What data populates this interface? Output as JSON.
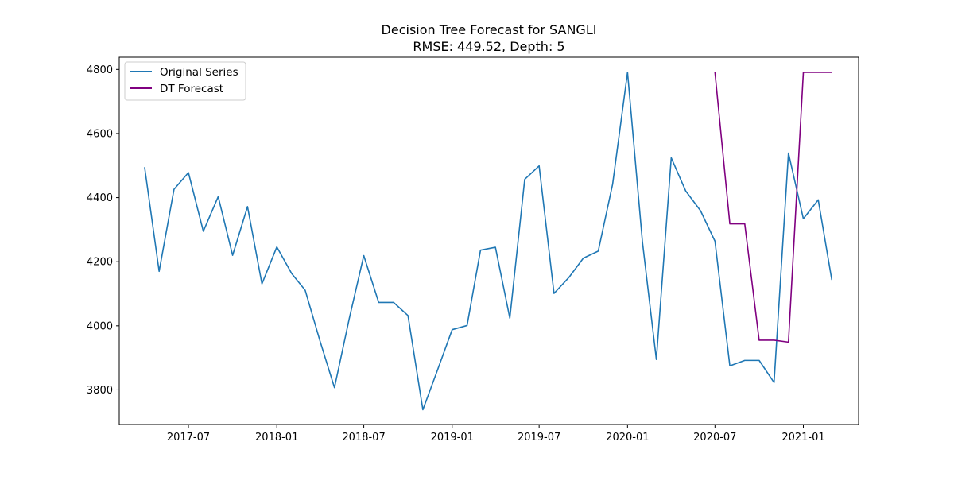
{
  "chart_data": {
    "type": "line",
    "title": "Decision Tree Forecast for SANGLI",
    "subtitle": "RMSE: 449.52, Depth: 5",
    "xlabel": "",
    "ylabel": "",
    "x_axis_type": "date",
    "xlim": [
      "2017-02-07",
      "2021-04-26"
    ],
    "ylim": [
      3692,
      4838
    ],
    "grid": false,
    "legend_position": "top-left",
    "x_ticks": [
      {
        "date": "2017-07-01",
        "label": "2017-07"
      },
      {
        "date": "2018-01-01",
        "label": "2018-01"
      },
      {
        "date": "2018-07-01",
        "label": "2018-07"
      },
      {
        "date": "2019-01-01",
        "label": "2019-01"
      },
      {
        "date": "2019-07-01",
        "label": "2019-07"
      },
      {
        "date": "2020-01-01",
        "label": "2020-01"
      },
      {
        "date": "2020-07-01",
        "label": "2020-07"
      },
      {
        "date": "2021-01-01",
        "label": "2021-01"
      }
    ],
    "y_ticks": [
      {
        "value": 3800,
        "label": "3800"
      },
      {
        "value": 4000,
        "label": "4000"
      },
      {
        "value": 4200,
        "label": "4200"
      },
      {
        "value": 4400,
        "label": "4400"
      },
      {
        "value": 4600,
        "label": "4600"
      },
      {
        "value": 4800,
        "label": "4800"
      }
    ],
    "series": [
      {
        "name": "Original Series",
        "color": "#1f77b4",
        "x": [
          "2017-04-01",
          "2017-05-01",
          "2017-06-01",
          "2017-07-01",
          "2017-08-01",
          "2017-09-01",
          "2017-10-01",
          "2017-11-01",
          "2017-12-01",
          "2018-01-01",
          "2018-02-01",
          "2018-03-01",
          "2018-04-01",
          "2018-05-01",
          "2018-06-01",
          "2018-07-01",
          "2018-08-01",
          "2018-09-01",
          "2018-10-01",
          "2018-11-01",
          "2018-12-01",
          "2019-01-01",
          "2019-02-01",
          "2019-03-01",
          "2019-04-01",
          "2019-05-01",
          "2019-06-01",
          "2019-07-01",
          "2019-08-01",
          "2019-09-01",
          "2019-10-01",
          "2019-11-01",
          "2019-12-01",
          "2020-01-01",
          "2020-02-01",
          "2020-03-01",
          "2020-04-01",
          "2020-05-01",
          "2020-06-01",
          "2020-07-01",
          "2020-08-01",
          "2020-09-01",
          "2020-10-01",
          "2020-11-01",
          "2020-12-01",
          "2021-01-01",
          "2021-02-01",
          "2021-03-01"
        ],
        "values": [
          4493,
          4170,
          4426,
          4478,
          4295,
          4403,
          4220,
          4372,
          4131,
          4246,
          4163,
          4111,
          3952,
          3807,
          4024,
          4219,
          4073,
          4073,
          4032,
          3738,
          3860,
          3988,
          4001,
          4236,
          4245,
          4024,
          4457,
          4499,
          4101,
          4151,
          4211,
          4233,
          4442,
          4791,
          4262,
          3895,
          4524,
          4421,
          4359,
          4264,
          3875,
          3892,
          3892,
          3823,
          4539,
          4334,
          4393,
          4145
        ]
      },
      {
        "name": "DT Forecast",
        "color": "#800080",
        "x": [
          "2020-07-01",
          "2020-08-01",
          "2020-09-01",
          "2020-10-01",
          "2020-11-01",
          "2020-12-01",
          "2021-01-01",
          "2021-02-01",
          "2021-03-01"
        ],
        "values": [
          4791,
          4318,
          4318,
          3955,
          3955,
          3949,
          4791,
          4791,
          4791
        ]
      }
    ]
  }
}
